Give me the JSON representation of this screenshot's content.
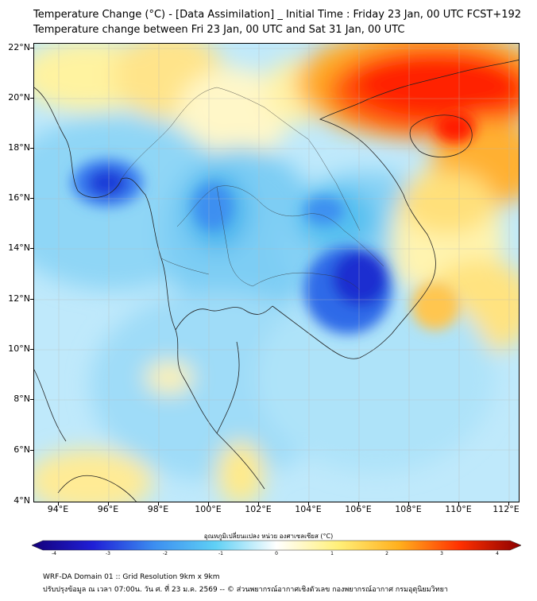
{
  "title_line1": "Temperature Change (°C) - [Data Assimilation] _ Initial Time : Friday 23 Jan, 00 UTC FCST+192",
  "title_line2": "Temperature change between Fri 23 Jan, 00 UTC and Sat 31 Jan, 00 UTC",
  "lat_labels": [
    "22°N",
    "20°N",
    "18°N",
    "16°N",
    "14°N",
    "12°N",
    "10°N",
    "8°N",
    "6°N",
    "4°N"
  ],
  "lon_labels": [
    "94°E",
    "96°E",
    "98°E",
    "100°E",
    "102°E",
    "104°E",
    "106°E",
    "108°E",
    "110°E",
    "112°E"
  ],
  "colorbar": {
    "title": "อุณหภูมิเปลี่ยนแปลง หน่วย องศาเซลเซียส (°C)",
    "tick_labels": [
      "-4",
      "-3",
      "-2",
      "-1",
      "0",
      "1",
      "2",
      "3",
      "4"
    ],
    "min": -4,
    "max": 4,
    "colors": [
      "#14007a",
      "#1f1fd6",
      "#3c8ef0",
      "#5fd0f5",
      "#ffffff",
      "#fff07a",
      "#ffb01e",
      "#ff3000",
      "#8c0000"
    ]
  },
  "footer_line1": "WRF-DA Domain 01 :: Grid Resolution 9km x 9km",
  "footer_line2": "ปรับปรุงข้อมูล ณ เวลา 07:00น. วัน ศ. ที่ 23 ม.ค. 2569 -- © ส่วนพยากรณ์อากาศเชิงตัวเลข กองพยากรณ์อากาศ กรมอุตุนิยมวิทยา"
}
